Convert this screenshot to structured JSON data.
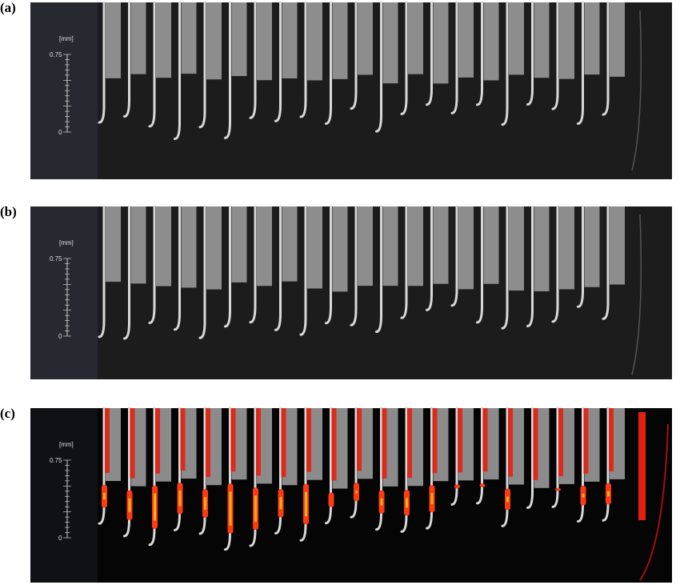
{
  "panels": [
    {
      "label": "(a)",
      "unit": "[mm]",
      "scale_max": "0.75",
      "scale_min": "0"
    },
    {
      "label": "(b)",
      "unit": "[mm]",
      "scale_max": "0.75",
      "scale_min": "0"
    },
    {
      "label": "(c)",
      "unit": "[mm]",
      "scale_max": "0.75",
      "scale_min": "0"
    }
  ]
}
